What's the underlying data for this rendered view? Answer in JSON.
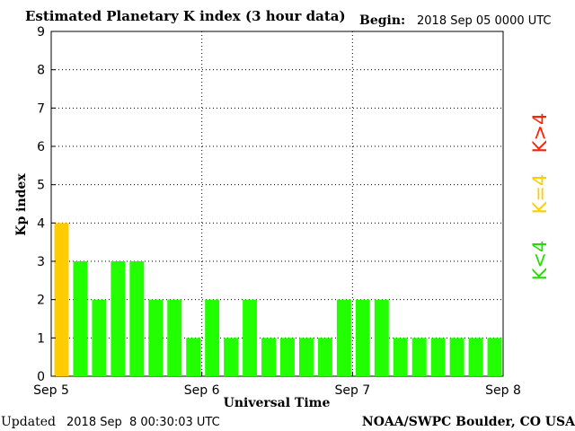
{
  "header": {
    "title": "Estimated Planetary K index (3 hour data)",
    "begin_label": "Begin:",
    "begin_value": "2018 Sep 05 0000 UTC"
  },
  "footer": {
    "updated_label": "Updated",
    "updated_value": "2018 Sep  8 00:30:03 UTC",
    "source": "NOAA/SWPC Boulder, CO USA"
  },
  "legend": [
    {
      "label": "K<4",
      "color": "#22dd00"
    },
    {
      "label": "K=4",
      "color": "#ffcc00"
    },
    {
      "label": "K>4",
      "color": "#ff2200"
    }
  ],
  "chart_data": {
    "type": "bar",
    "title": "Estimated Planetary K index (3 hour data)",
    "xlabel": "Universal Time",
    "ylabel": "Kp index",
    "ylim": [
      0,
      9
    ],
    "yticks": [
      "0",
      "1",
      "2",
      "3",
      "4",
      "5",
      "6",
      "7",
      "8",
      "9"
    ],
    "xticks": [
      "Sep 5",
      "Sep 6",
      "Sep 7",
      "Sep 8"
    ],
    "grid": true,
    "values": [
      4,
      3,
      2,
      3,
      3,
      2,
      2,
      1,
      2,
      1,
      2,
      1,
      1,
      1,
      1,
      2,
      2,
      2,
      1,
      1,
      1,
      1,
      1,
      1
    ],
    "colors": {
      "below": "#22ff00",
      "equal": "#ffcc00",
      "above": "#ff0000"
    }
  }
}
